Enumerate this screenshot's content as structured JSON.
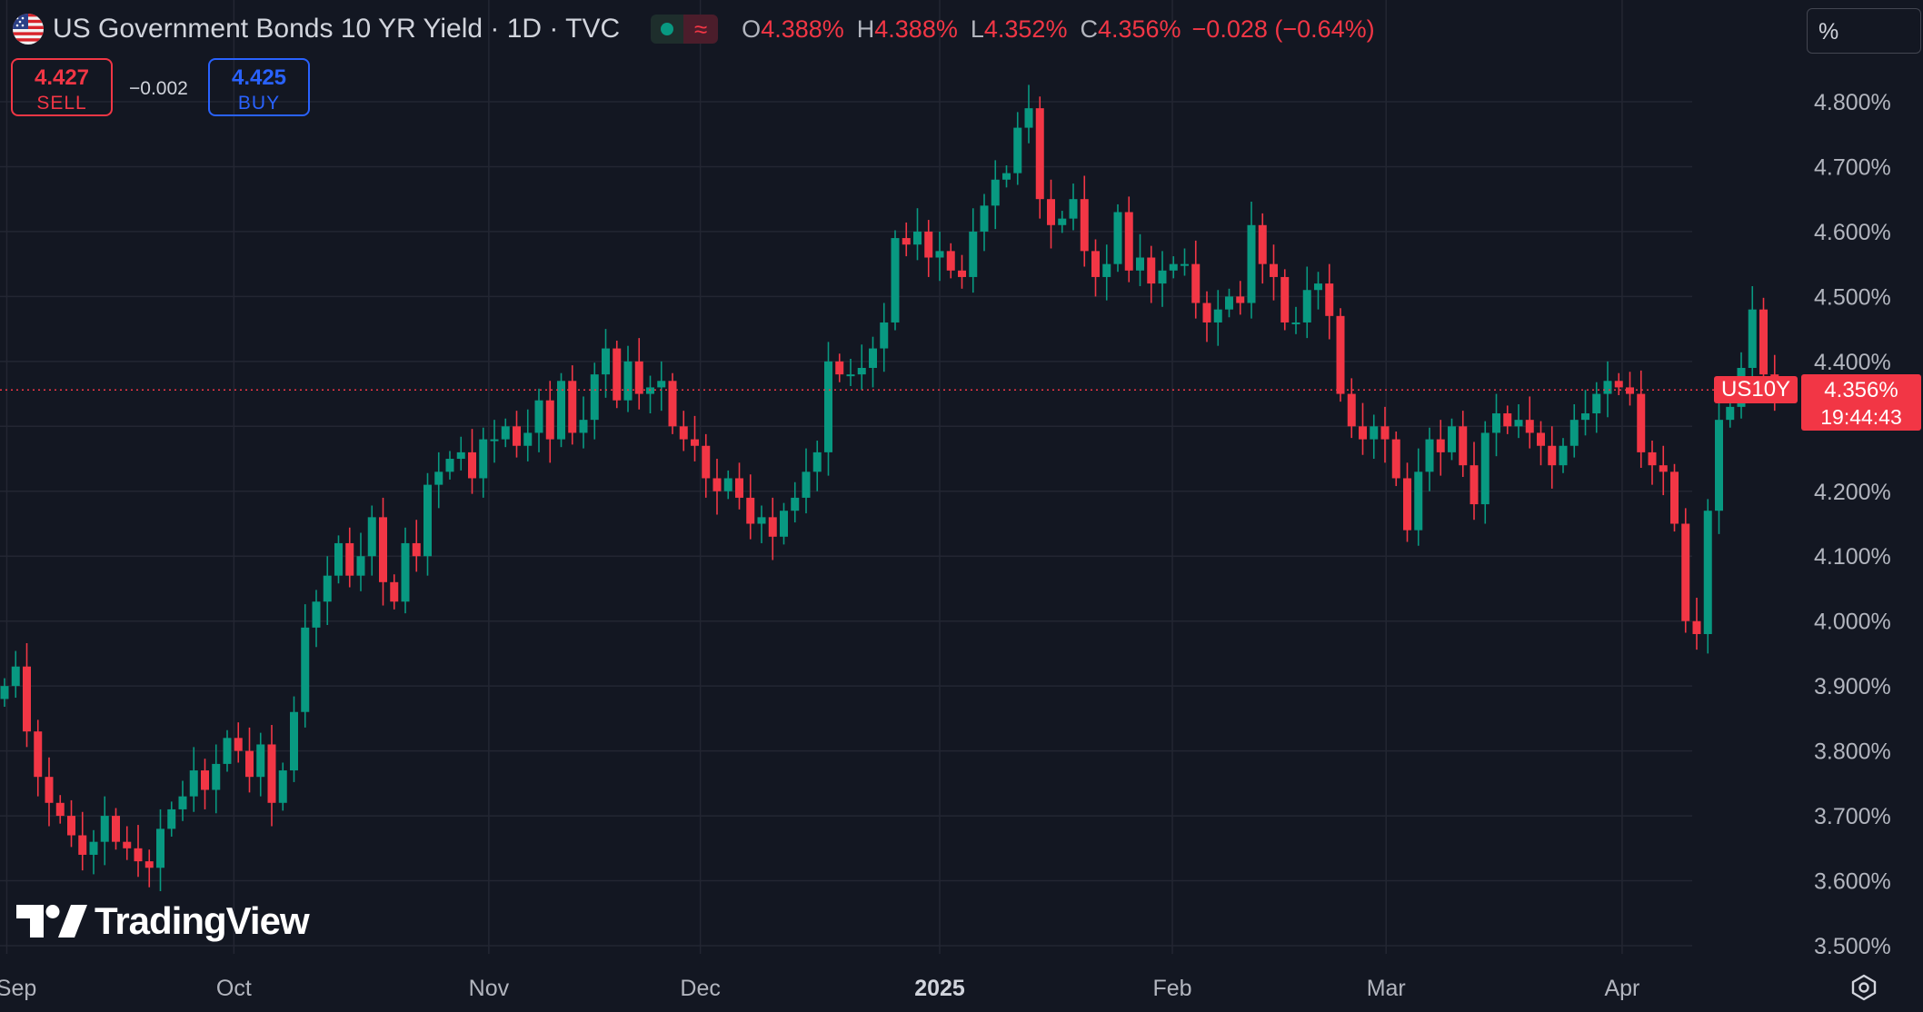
{
  "header": {
    "title": "US Government Bonds 10 YR Yield · 1D · TVC",
    "ohlc": [
      {
        "key": "O",
        "value": "4.388%"
      },
      {
        "key": "H",
        "value": "4.388%"
      },
      {
        "key": "L",
        "value": "4.352%"
      },
      {
        "key": "C",
        "value": "4.356%"
      }
    ],
    "change": "−0.028 (−0.64%)"
  },
  "trade": {
    "sell_price": "4.427",
    "sell_label": "SELL",
    "spread": "−0.002",
    "buy_price": "4.425",
    "buy_label": "BUY"
  },
  "scale_mode": "%",
  "watermark": "TradingView",
  "current": {
    "symbol": "US10Y",
    "price": "4.356%",
    "countdown": "19:44:43"
  },
  "colors": {
    "up": "#089981",
    "down": "#f23645",
    "background": "#131722",
    "grid": "#232632",
    "text": "#b2b5be"
  },
  "icons": {
    "flag": "us-flag-icon",
    "status": "market-status-icon",
    "settings": "settings-gear-icon",
    "logo": "tradingview-logo-icon"
  },
  "chart_data": {
    "type": "candlestick",
    "x_labels": [
      {
        "label": "Sep",
        "index": 0.2
      },
      {
        "label": "Oct",
        "index": 20.6
      },
      {
        "label": "Nov",
        "index": 43.5
      },
      {
        "label": "Dec",
        "index": 62.5
      },
      {
        "label": "2025",
        "index": 84.0
      },
      {
        "label": "Feb",
        "index": 104.9
      },
      {
        "label": "Mar",
        "index": 124.1
      },
      {
        "label": "Apr",
        "index": 145.3
      }
    ],
    "y_axis": {
      "min": 3.5,
      "max": 4.8,
      "step": 0.1,
      "unit": "%"
    },
    "y_ticks": [
      "4.800%",
      "4.700%",
      "4.600%",
      "4.500%",
      "4.400%",
      "4.200%",
      "4.100%",
      "4.000%",
      "3.900%",
      "3.800%",
      "3.700%",
      "3.600%",
      "3.500%"
    ],
    "last_price": 4.356,
    "closes": [
      3.9,
      3.93,
      3.83,
      3.76,
      3.72,
      3.7,
      3.67,
      3.64,
      3.66,
      3.7,
      3.66,
      3.65,
      3.63,
      3.62,
      3.68,
      3.71,
      3.73,
      3.77,
      3.74,
      3.78,
      3.82,
      3.8,
      3.76,
      3.81,
      3.72,
      3.77,
      3.86,
      3.99,
      4.03,
      4.07,
      4.12,
      4.07,
      4.1,
      4.16,
      4.06,
      4.03,
      4.12,
      4.1,
      4.21,
      4.23,
      4.25,
      4.26,
      4.22,
      4.28,
      4.28,
      4.3,
      4.27,
      4.29,
      4.34,
      4.28,
      4.37,
      4.29,
      4.31,
      4.38,
      4.42,
      4.34,
      4.4,
      4.35,
      4.36,
      4.37,
      4.3,
      4.28,
      4.27,
      4.22,
      4.2,
      4.22,
      4.19,
      4.15,
      4.16,
      4.13,
      4.17,
      4.19,
      4.23,
      4.26,
      4.4,
      4.38,
      4.38,
      4.39,
      4.42,
      4.46,
      4.59,
      4.58,
      4.6,
      4.56,
      4.57,
      4.54,
      4.53,
      4.6,
      4.64,
      4.68,
      4.69,
      4.76,
      4.79,
      4.65,
      4.61,
      4.62,
      4.65,
      4.57,
      4.53,
      4.55,
      4.63,
      4.54,
      4.56,
      4.52,
      4.54,
      4.55,
      4.55,
      4.49,
      4.46,
      4.48,
      4.5,
      4.49,
      4.61,
      4.55,
      4.53,
      4.46,
      4.46,
      4.51,
      4.52,
      4.47,
      4.35,
      4.3,
      4.28,
      4.3,
      4.28,
      4.22,
      4.14,
      4.23,
      4.28,
      4.26,
      4.3,
      4.24,
      4.18,
      4.29,
      4.32,
      4.3,
      4.31,
      4.29,
      4.27,
      4.24,
      4.27,
      4.31,
      4.32,
      4.35,
      4.37,
      4.36,
      4.35,
      4.26,
      4.24,
      4.23,
      4.15,
      4.0,
      3.98,
      4.17,
      4.31,
      4.33,
      4.39,
      4.48,
      4.38,
      4.36
    ]
  }
}
